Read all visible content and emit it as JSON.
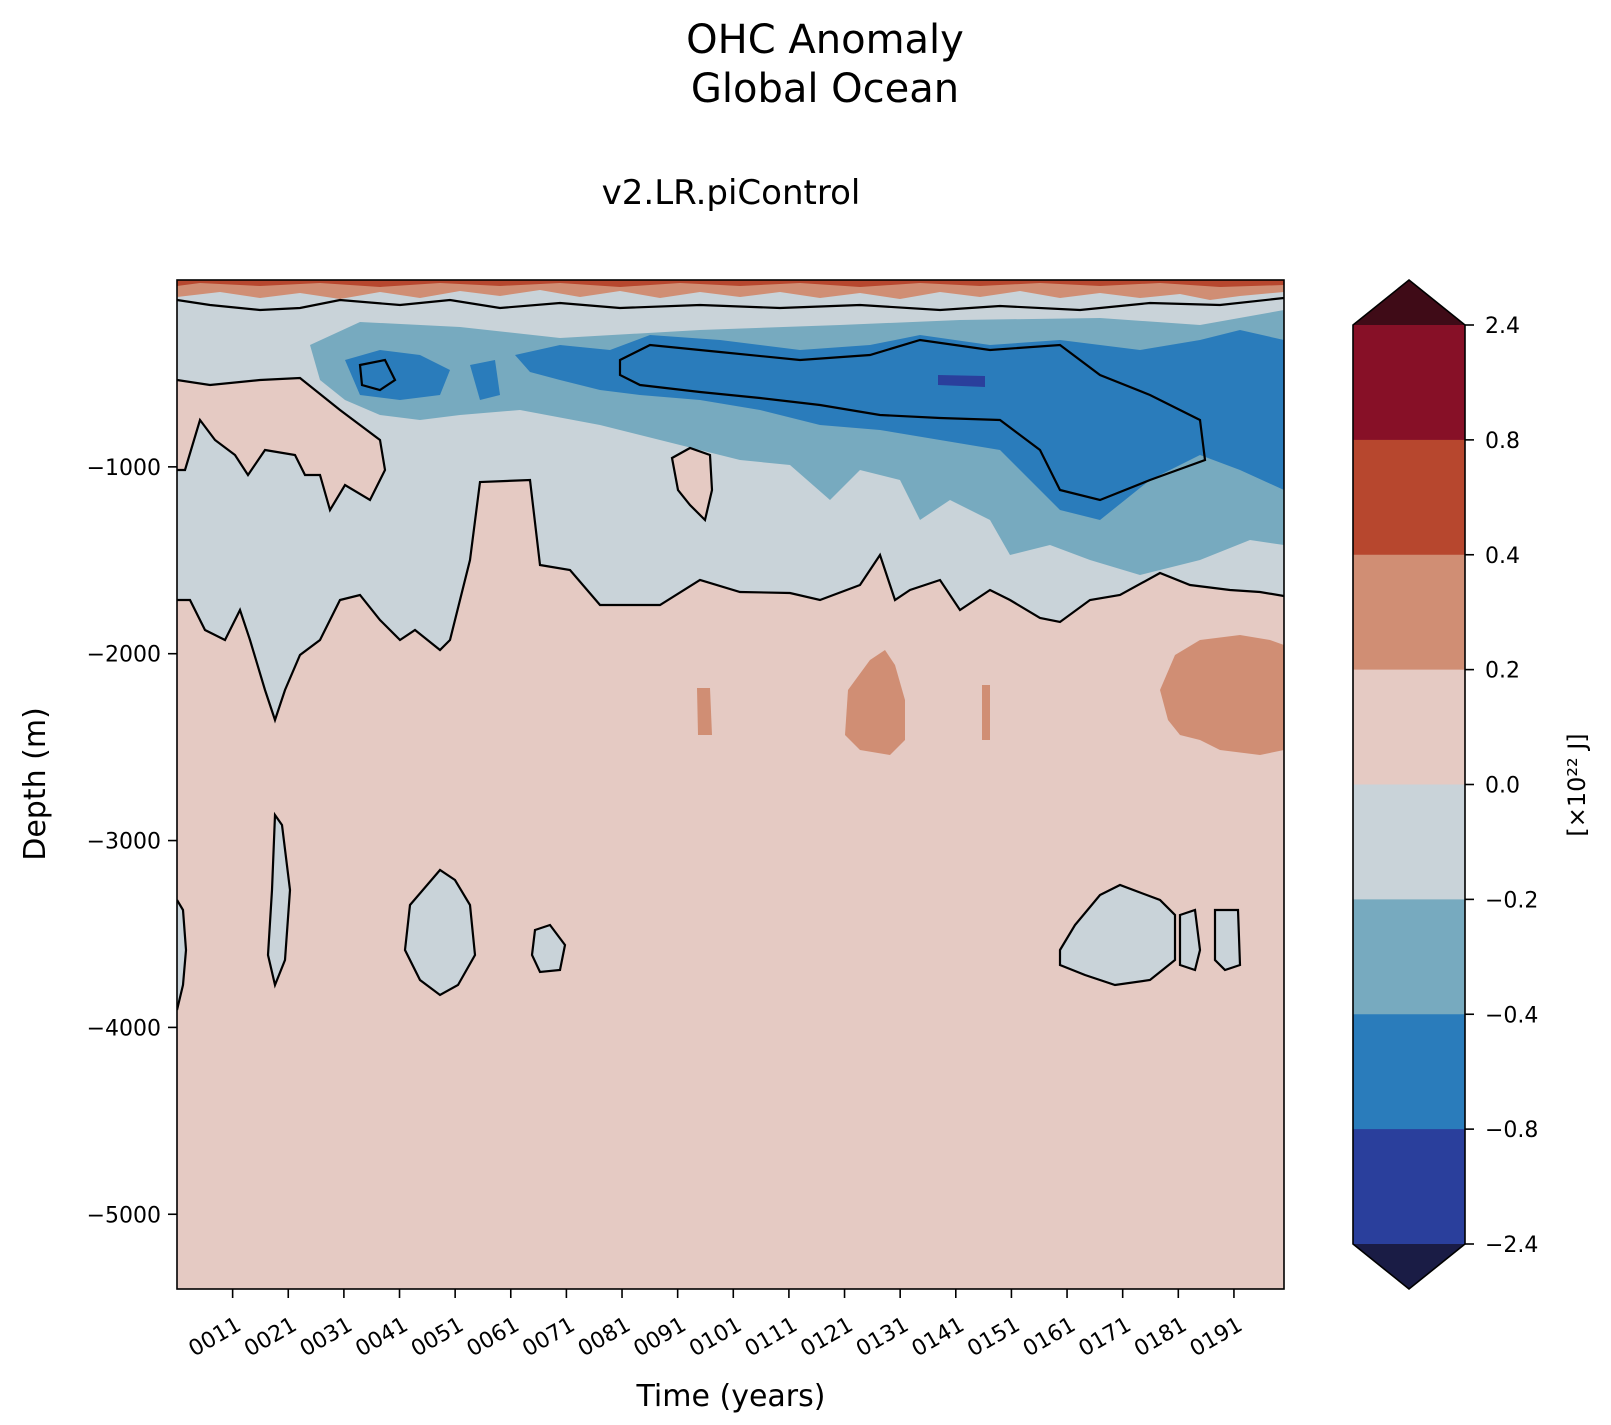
{
  "figure": {
    "title_line1": "OHC Anomaly",
    "title_line2": "Global Ocean",
    "subtitle": "v2.LR.piControl"
  },
  "chart_data": {
    "type": "heatmap",
    "variant": "filled-contour (time vs depth)",
    "title": "OHC Anomaly Global Ocean",
    "subtitle": "v2.LR.piControl",
    "xlabel": "Time (years)",
    "ylabel": "Depth (m)",
    "xlim": [
      1,
      200
    ],
    "ylim": [
      -5400,
      0
    ],
    "xticks": [
      {
        "value": 11,
        "label": "0011"
      },
      {
        "value": 21,
        "label": "0021"
      },
      {
        "value": 31,
        "label": "0031"
      },
      {
        "value": 41,
        "label": "0041"
      },
      {
        "value": 51,
        "label": "0051"
      },
      {
        "value": 61,
        "label": "0061"
      },
      {
        "value": 71,
        "label": "0071"
      },
      {
        "value": 81,
        "label": "0081"
      },
      {
        "value": 91,
        "label": "0091"
      },
      {
        "value": 101,
        "label": "0101"
      },
      {
        "value": 111,
        "label": "0111"
      },
      {
        "value": 121,
        "label": "0121"
      },
      {
        "value": 131,
        "label": "0131"
      },
      {
        "value": 141,
        "label": "0141"
      },
      {
        "value": 151,
        "label": "0151"
      },
      {
        "value": 161,
        "label": "0161"
      },
      {
        "value": 171,
        "label": "0171"
      },
      {
        "value": 181,
        "label": "0181"
      },
      {
        "value": 191,
        "label": "0191"
      }
    ],
    "yticks": [
      {
        "value": -1000,
        "label": "−1000"
      },
      {
        "value": -2000,
        "label": "−2000"
      },
      {
        "value": -3000,
        "label": "−3000"
      },
      {
        "value": -4000,
        "label": "−4000"
      },
      {
        "value": -5000,
        "label": "−5000"
      }
    ],
    "colorbar": {
      "label": "[×10²² J]",
      "levels": [
        "2.4",
        "0.8",
        "0.4",
        "0.2",
        "0.0",
        "−0.2",
        "−0.4",
        "−0.8",
        "−2.4"
      ],
      "level_values": [
        2.4,
        0.8,
        0.4,
        0.2,
        0.0,
        -0.2,
        -0.4,
        -0.8,
        -2.4
      ],
      "band_colors": [
        "#871027",
        "#b7472e",
        "#d08e74",
        "#e5cac3",
        "#c9d3d9",
        "#77aabf",
        "#2a7cbb",
        "#2a3f9c"
      ],
      "over_color": "#3f0b17",
      "under_color": "#1a1c45",
      "extend": "both"
    },
    "background_level": "0.0 to 0.2",
    "features": [
      {
        "label": "surface warm layer",
        "level": "0.2 to 0.8",
        "depth_range": [
          -100,
          0
        ]
      },
      {
        "label": "upper cool band",
        "level": "-0.2 to 0.0",
        "depth_range": [
          -1800,
          -100
        ]
      },
      {
        "label": "strong cool core",
        "level": "-0.8 to -0.4",
        "time_range": [
          75,
          200
        ],
        "depth_range": [
          -1200,
          -350
        ]
      },
      {
        "label": "deep warm patches",
        "level": "0.2 to 0.4",
        "depth_range": [
          -2500,
          -1950
        ]
      },
      {
        "label": "abyssal cool lenses",
        "level": "-0.2 to 0.0",
        "depth_range": [
          -3800,
          -2900
        ]
      }
    ]
  }
}
